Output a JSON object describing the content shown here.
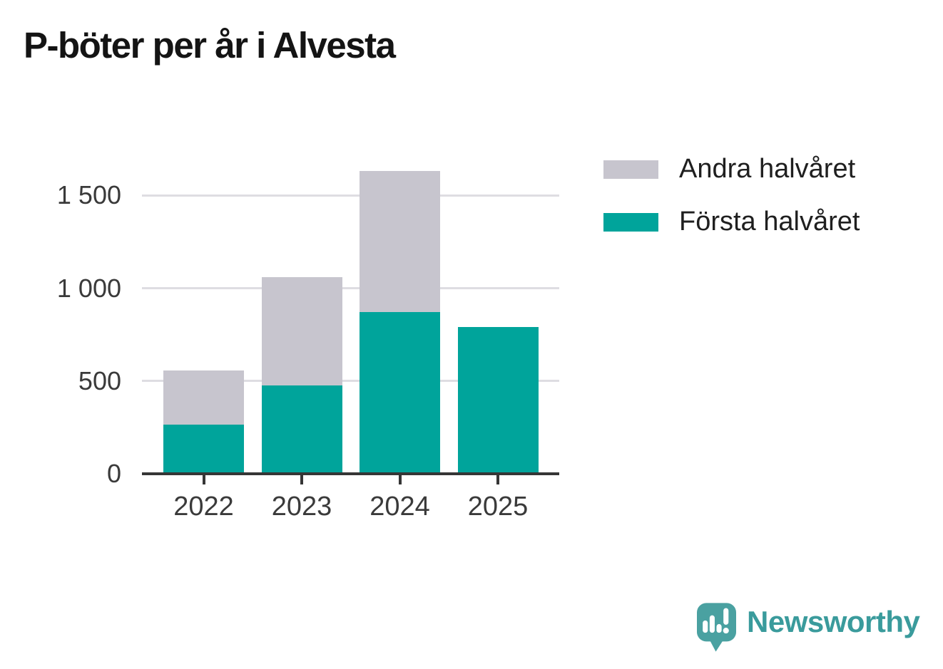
{
  "title": "P-böter per år i Alvesta",
  "legend": {
    "items": [
      {
        "label": "Andra halvåret",
        "color": "#c7c5ce"
      },
      {
        "label": "Första halvåret",
        "color": "#00a49b"
      }
    ]
  },
  "chart_data": {
    "type": "bar",
    "stacked": true,
    "title": "P-böter per år i Alvesta",
    "categories": [
      "2022",
      "2023",
      "2024",
      "2025"
    ],
    "series": [
      {
        "name": "Första halvåret",
        "color": "#00a49b",
        "values": [
          265,
          475,
          870,
          790
        ]
      },
      {
        "name": "Andra halvåret",
        "color": "#c7c5ce",
        "values": [
          290,
          585,
          760,
          0
        ]
      }
    ],
    "stacked_totals": [
      555,
      1060,
      1630,
      790
    ],
    "xlabel": "",
    "ylabel": "",
    "yticks": [
      0,
      500,
      1000,
      1500
    ],
    "ytick_labels": [
      "0",
      "500",
      "1 000",
      "1 500"
    ],
    "ylim": [
      0,
      1700
    ],
    "grid": "horizontal-only",
    "gridline_color": "#dedde2",
    "axis_color": "#363636",
    "legend_position": "upper-right-outside"
  },
  "branding": {
    "logo_text": "Newsworthy",
    "logo_icon": "newsworthy-speech-bubble-bar-chart-icon",
    "logo_text_color": "#3a9b9c",
    "logo_icon_color": "#4aa1a1"
  }
}
